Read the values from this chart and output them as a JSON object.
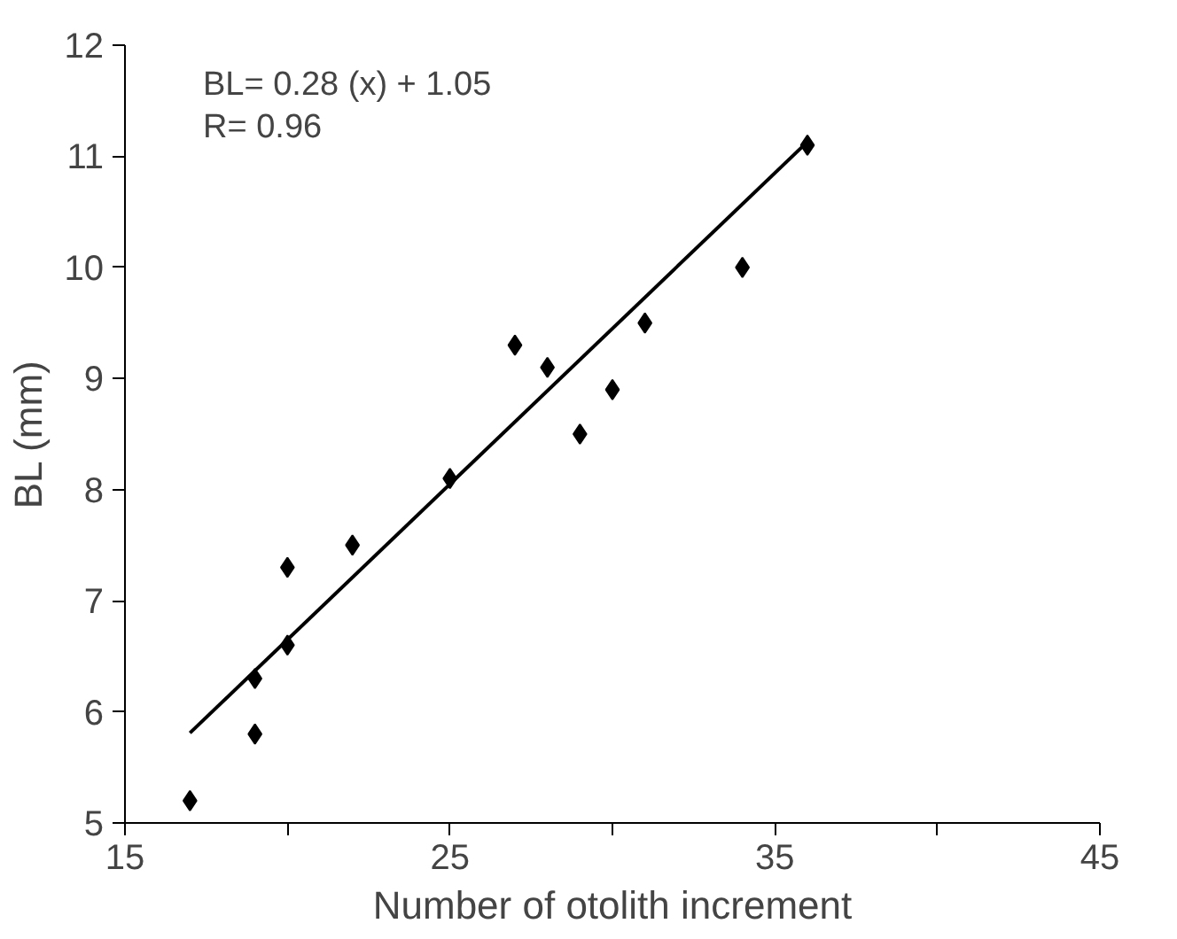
{
  "chart_data": {
    "type": "scatter",
    "xlabel": "Number of otolith increment",
    "ylabel": "BL (mm)",
    "annotations": [
      "BL= 0.28 (x) + 1.05",
      "R= 0.96"
    ],
    "series": [
      {
        "color": "#000000",
        "marker": "diamond",
        "x": [
          17,
          19,
          19,
          20,
          20,
          22,
          25,
          27,
          28,
          29,
          30,
          31,
          34,
          36
        ],
        "values": [
          5.2,
          5.8,
          6.3,
          6.6,
          7.3,
          7.5,
          8.1,
          9.3,
          9.1,
          8.5,
          8.9,
          9.5,
          10.0,
          11.1
        ]
      },
      {
        "type": "line",
        "color": "#000000",
        "line_style": "solid",
        "x": [
          17,
          36
        ],
        "values": [
          5.81,
          11.13
        ]
      }
    ],
    "xlim": [
      15,
      45
    ],
    "ylim": [
      5,
      12
    ],
    "xticks": [
      15,
      {
        "value": 20,
        "label": null
      },
      25,
      {
        "value": 30,
        "label": null
      },
      35,
      {
        "value": 40,
        "label": null
      },
      45
    ],
    "yticks": [
      5,
      6,
      7,
      8,
      9,
      10,
      11,
      12
    ],
    "grid": false
  }
}
